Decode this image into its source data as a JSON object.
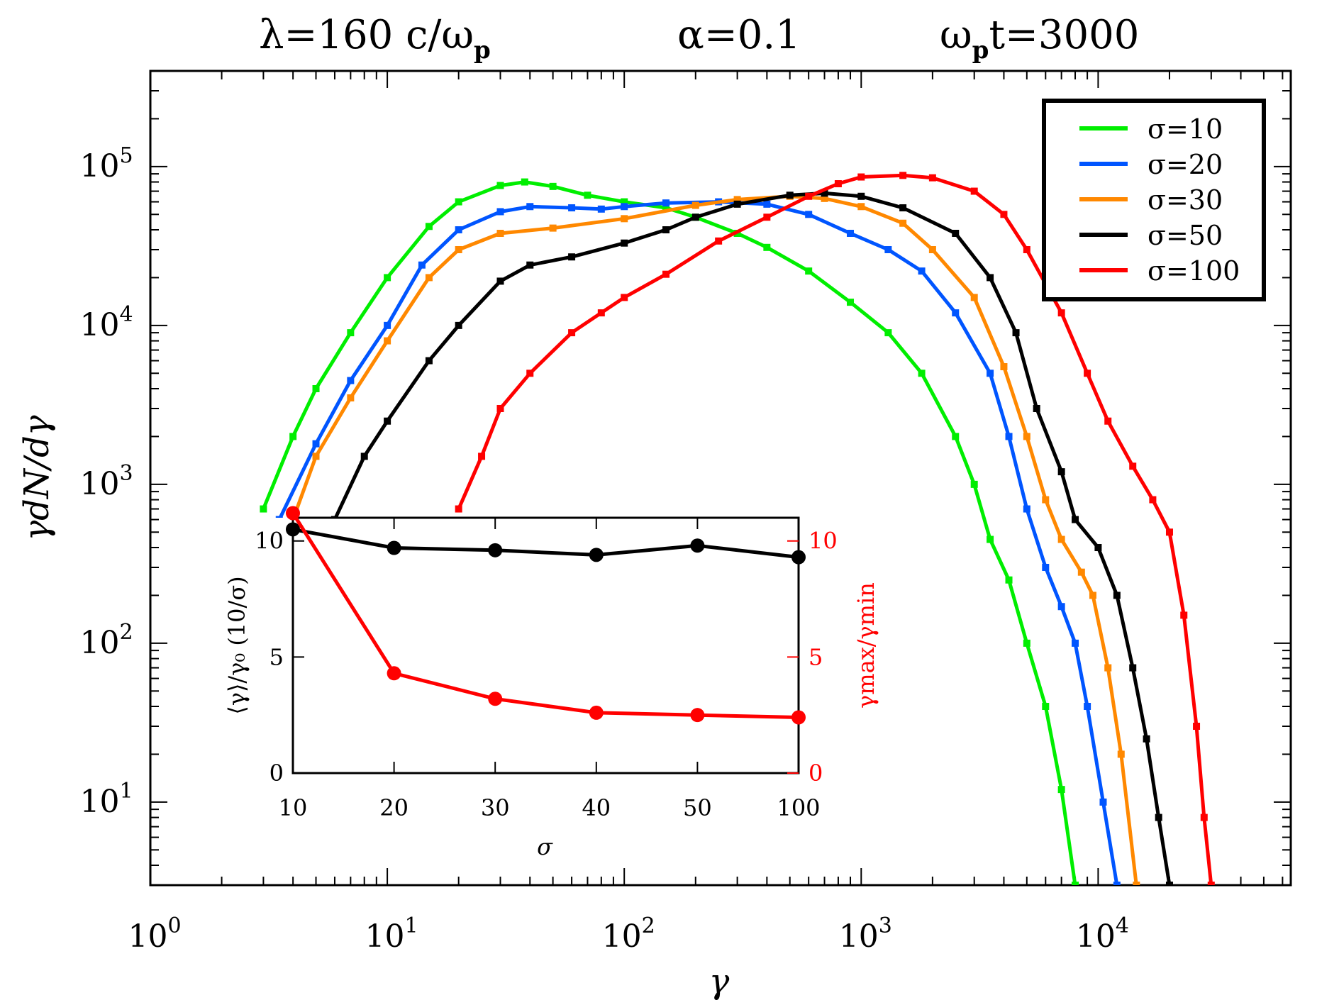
{
  "title": {
    "part1": "λ=160  c/ω",
    "part1_sub": "p",
    "part2": "α=0.1",
    "part3": "ω",
    "part3_sub": "p",
    "part3_tail": "t=3000"
  },
  "chart_data": [
    {
      "type": "line",
      "id": "main-spectrum",
      "xlabel": "γ",
      "ylabel": "γdN/dγ",
      "xscale": "log",
      "yscale": "log",
      "xlim": [
        1,
        65000
      ],
      "ylim": [
        3,
        400000
      ],
      "x_ticks": [
        {
          "value": 1,
          "base": "10",
          "exp": "0"
        },
        {
          "value": 10,
          "base": "10",
          "exp": "1"
        },
        {
          "value": 100,
          "base": "10",
          "exp": "2"
        },
        {
          "value": 1000,
          "base": "10",
          "exp": "3"
        },
        {
          "value": 10000,
          "base": "10",
          "exp": "4"
        }
      ],
      "y_ticks": [
        {
          "value": 10,
          "base": "10",
          "exp": "1"
        },
        {
          "value": 100,
          "base": "10",
          "exp": "2"
        },
        {
          "value": 1000,
          "base": "10",
          "exp": "3"
        },
        {
          "value": 10000,
          "base": "10",
          "exp": "4"
        },
        {
          "value": 100000,
          "base": "10",
          "exp": "5"
        }
      ],
      "legend_position": "top-right",
      "series": [
        {
          "name": "σ=10",
          "color": "#00ee00",
          "points": [
            [
              3.0,
              700
            ],
            [
              4.0,
              2000
            ],
            [
              5.0,
              4000
            ],
            [
              7.0,
              9000
            ],
            [
              10.0,
              20000
            ],
            [
              15.0,
              42000
            ],
            [
              20.0,
              60000
            ],
            [
              30.0,
              76000
            ],
            [
              38.0,
              80000
            ],
            [
              50.0,
              75000
            ],
            [
              70.0,
              66000
            ],
            [
              100.0,
              60000
            ],
            [
              150.0,
              55000
            ],
            [
              200.0,
              48000
            ],
            [
              300.0,
              38000
            ],
            [
              400.0,
              31000
            ],
            [
              600.0,
              22000
            ],
            [
              900.0,
              14000
            ],
            [
              1300.0,
              9000
            ],
            [
              1800.0,
              5000
            ],
            [
              2500.0,
              2000
            ],
            [
              3000.0,
              1000
            ],
            [
              3500.0,
              450
            ],
            [
              4200.0,
              250
            ],
            [
              5000.0,
              100
            ],
            [
              6000.0,
              40
            ],
            [
              7000.0,
              12
            ],
            [
              8000.0,
              3
            ]
          ]
        },
        {
          "name": "σ=20",
          "color": "#0055ff",
          "points": [
            [
              3.5,
              600
            ],
            [
              5.0,
              1800
            ],
            [
              7.0,
              4500
            ],
            [
              10.0,
              10000
            ],
            [
              14.0,
              24000
            ],
            [
              20.0,
              40000
            ],
            [
              30.0,
              52000
            ],
            [
              40.0,
              56000
            ],
            [
              60.0,
              55000
            ],
            [
              80.0,
              54000
            ],
            [
              100.0,
              56000
            ],
            [
              150.0,
              59000
            ],
            [
              250.0,
              60000
            ],
            [
              400.0,
              58000
            ],
            [
              600.0,
              50000
            ],
            [
              900.0,
              38000
            ],
            [
              1300.0,
              30000
            ],
            [
              1800.0,
              22000
            ],
            [
              2500.0,
              12000
            ],
            [
              3500.0,
              5000
            ],
            [
              4200.0,
              2000
            ],
            [
              5000.0,
              700
            ],
            [
              6000.0,
              300
            ],
            [
              7000.0,
              170
            ],
            [
              8000.0,
              100
            ],
            [
              9000.0,
              40
            ],
            [
              10500.0,
              10
            ],
            [
              12000.0,
              3
            ]
          ]
        },
        {
          "name": "σ=30",
          "color": "#ff8800",
          "points": [
            [
              4.0,
              600
            ],
            [
              5.0,
              1500
            ],
            [
              7.0,
              3500
            ],
            [
              10.0,
              8000
            ],
            [
              15.0,
              20000
            ],
            [
              20.0,
              30000
            ],
            [
              30.0,
              38000
            ],
            [
              50.0,
              41000
            ],
            [
              100.0,
              47000
            ],
            [
              200.0,
              57000
            ],
            [
              300.0,
              62000
            ],
            [
              500.0,
              65000
            ],
            [
              700.0,
              63000
            ],
            [
              1000.0,
              56000
            ],
            [
              1500.0,
              44000
            ],
            [
              2000.0,
              30000
            ],
            [
              3000.0,
              15000
            ],
            [
              4000.0,
              5500
            ],
            [
              5000.0,
              2000
            ],
            [
              6000.0,
              800
            ],
            [
              7000.0,
              450
            ],
            [
              8500.0,
              280
            ],
            [
              9500.0,
              200
            ],
            [
              11000.0,
              70
            ],
            [
              12500.0,
              20
            ],
            [
              14500.0,
              3
            ]
          ]
        },
        {
          "name": "σ=50",
          "color": "#000000",
          "points": [
            [
              6.0,
              600
            ],
            [
              8.0,
              1500
            ],
            [
              10.0,
              2500
            ],
            [
              15.0,
              6000
            ],
            [
              20.0,
              10000
            ],
            [
              30.0,
              19000
            ],
            [
              40.0,
              24000
            ],
            [
              60.0,
              27000
            ],
            [
              100.0,
              33000
            ],
            [
              150.0,
              40000
            ],
            [
              200.0,
              48000
            ],
            [
              300.0,
              58000
            ],
            [
              500.0,
              66000
            ],
            [
              700.0,
              68000
            ],
            [
              1000.0,
              65000
            ],
            [
              1500.0,
              55000
            ],
            [
              2500.0,
              38000
            ],
            [
              3500.0,
              20000
            ],
            [
              4500.0,
              9000
            ],
            [
              5500.0,
              3000
            ],
            [
              7000.0,
              1200
            ],
            [
              8000.0,
              600
            ],
            [
              10000.0,
              400
            ],
            [
              12000.0,
              200
            ],
            [
              14000.0,
              70
            ],
            [
              16000.0,
              25
            ],
            [
              18000.0,
              8
            ],
            [
              20000.0,
              3
            ]
          ]
        },
        {
          "name": "σ=100",
          "color": "#ff0000",
          "points": [
            [
              20.0,
              700
            ],
            [
              25.0,
              1500
            ],
            [
              30.0,
              3000
            ],
            [
              40.0,
              5000
            ],
            [
              60.0,
              9000
            ],
            [
              80.0,
              12000
            ],
            [
              100.0,
              15000
            ],
            [
              150.0,
              21000
            ],
            [
              250.0,
              34000
            ],
            [
              400.0,
              48000
            ],
            [
              600.0,
              65000
            ],
            [
              800.0,
              78000
            ],
            [
              1000.0,
              86000
            ],
            [
              1500.0,
              88000
            ],
            [
              2000.0,
              85000
            ],
            [
              3000.0,
              70000
            ],
            [
              4000.0,
              50000
            ],
            [
              5000.0,
              30000
            ],
            [
              7000.0,
              12000
            ],
            [
              9000.0,
              5000
            ],
            [
              11000.0,
              2500
            ],
            [
              14000.0,
              1300
            ],
            [
              17000.0,
              800
            ],
            [
              20000.0,
              500
            ],
            [
              23000.0,
              150
            ],
            [
              26000.0,
              30
            ],
            [
              28000.0,
              8
            ],
            [
              30000.0,
              3
            ]
          ]
        }
      ]
    },
    {
      "type": "line",
      "id": "inset",
      "xlabel": "σ",
      "ylabel_left": "⟨γ⟩/γ₀ (10/σ)",
      "ylabel_right": "γmax/γmin",
      "categories": [
        "10",
        "20",
        "30",
        "40",
        "50",
        "100"
      ],
      "ylim": [
        0,
        11
      ],
      "left_ticks": [
        "0",
        "5",
        "10"
      ],
      "right_ticks": [
        "0",
        "5",
        "10"
      ],
      "series": [
        {
          "name": "⟨γ⟩/γ₀ (10/σ)",
          "axis": "left",
          "color": "#000000",
          "values": [
            10.5,
            9.7,
            9.6,
            9.4,
            9.8,
            9.3
          ]
        },
        {
          "name": "γmax/γmin",
          "axis": "right",
          "color": "#ff0000",
          "values": [
            11.2,
            4.3,
            3.2,
            2.6,
            2.5,
            2.4
          ]
        }
      ]
    }
  ]
}
